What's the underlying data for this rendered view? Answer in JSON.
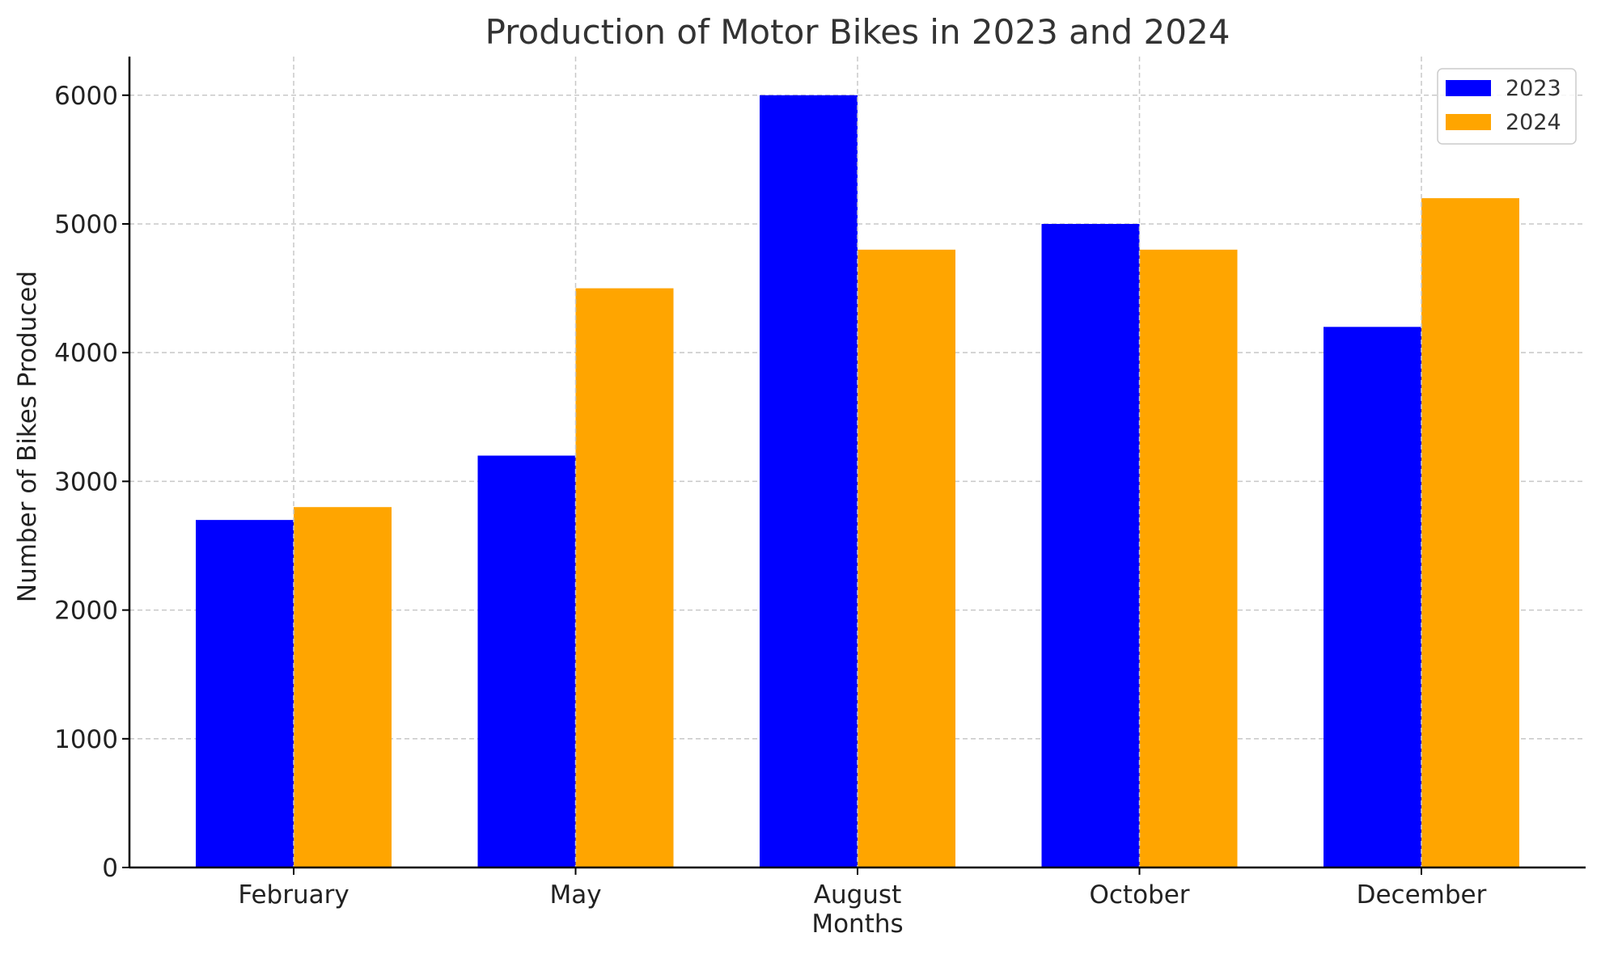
{
  "chart_data": {
    "type": "bar",
    "title": "Production of Motor Bikes in 2023 and 2024",
    "xlabel": "Months",
    "ylabel": "Number of Bikes Produced",
    "categories": [
      "February",
      "May",
      "August",
      "October",
      "December"
    ],
    "series": [
      {
        "name": "2023",
        "values": [
          2700,
          3200,
          6000,
          5000,
          4200
        ],
        "color": "#0000ff"
      },
      {
        "name": "2024",
        "values": [
          2800,
          4500,
          4800,
          4800,
          5200
        ],
        "color": "#ffa500"
      }
    ],
    "ylim": [
      0,
      6300
    ],
    "yticks": [
      0,
      1000,
      2000,
      3000,
      4000,
      5000,
      6000
    ],
    "grid": true,
    "legend_position": "top-right"
  }
}
